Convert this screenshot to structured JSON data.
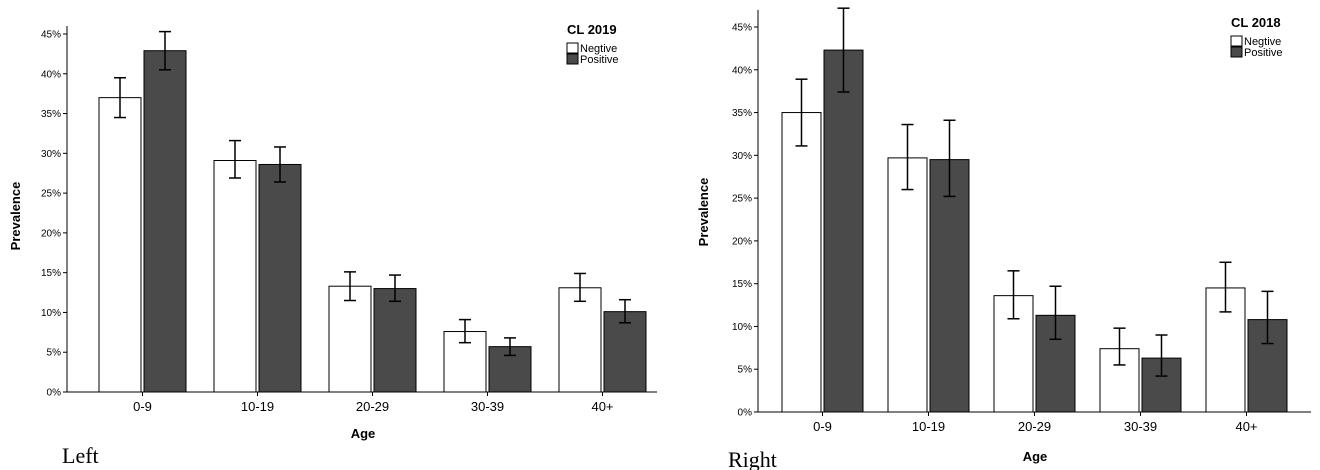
{
  "chart_data": [
    {
      "type": "bar",
      "legend_title": "CL 2019",
      "caption": "Left",
      "xlabel": "Age",
      "ylabel": "Prevalence",
      "categories": [
        "0-9",
        "10-19",
        "20-29",
        "30-39",
        "40+"
      ],
      "yticks": [
        "0%",
        "5%",
        "10%",
        "15%",
        "20%",
        "25%",
        "30%",
        "35%",
        "40%",
        "45%"
      ],
      "ylim": [
        0,
        46
      ],
      "legend_position": "top-right",
      "grid": false,
      "series": [
        {
          "name": "Negtive",
          "color": "#ffffff",
          "values": [
            37.0,
            29.1,
            13.3,
            7.6,
            13.1
          ],
          "err_low": [
            34.5,
            26.9,
            11.5,
            6.2,
            11.4
          ],
          "err_high": [
            39.5,
            31.6,
            15.1,
            9.1,
            14.9
          ]
        },
        {
          "name": "Positive",
          "color": "#4a4a4a",
          "values": [
            42.9,
            28.6,
            13.0,
            5.7,
            10.1
          ],
          "err_low": [
            40.5,
            26.4,
            11.4,
            4.6,
            8.7
          ],
          "err_high": [
            45.3,
            30.8,
            14.7,
            6.8,
            11.6
          ]
        }
      ]
    },
    {
      "type": "bar",
      "legend_title": "CL 2018",
      "caption": "Right",
      "xlabel": "Age",
      "ylabel": "Prevalence",
      "categories": [
        "0-9",
        "10-19",
        "20-29",
        "30-39",
        "40+"
      ],
      "yticks": [
        "0%",
        "5%",
        "10%",
        "15%",
        "20%",
        "25%",
        "30%",
        "35%",
        "40%",
        "45%"
      ],
      "ylim": [
        0,
        47
      ],
      "legend_position": "top-right",
      "grid": false,
      "series": [
        {
          "name": "Negtive",
          "color": "#ffffff",
          "values": [
            35.0,
            29.7,
            13.6,
            7.4,
            14.5
          ],
          "err_low": [
            31.1,
            26.0,
            10.9,
            5.5,
            11.7
          ],
          "err_high": [
            38.9,
            33.6,
            16.5,
            9.8,
            17.5
          ]
        },
        {
          "name": "Positive",
          "color": "#4a4a4a",
          "values": [
            42.3,
            29.5,
            11.3,
            6.3,
            10.8
          ],
          "err_low": [
            37.4,
            25.2,
            8.5,
            4.2,
            8.0
          ],
          "err_high": [
            47.2,
            34.1,
            14.7,
            9.0,
            14.1
          ]
        }
      ]
    }
  ]
}
